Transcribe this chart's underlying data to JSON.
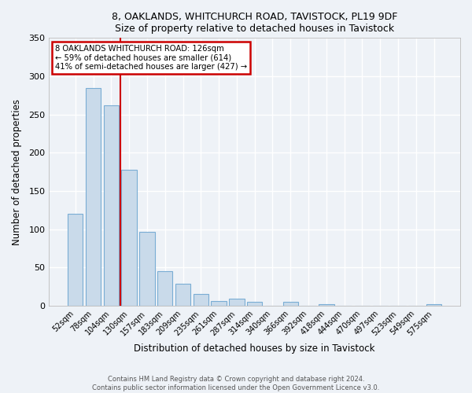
{
  "title1": "8, OAKLANDS, WHITCHURCH ROAD, TAVISTOCK, PL19 9DF",
  "title2": "Size of property relative to detached houses in Tavistock",
  "xlabel": "Distribution of detached houses by size in Tavistock",
  "ylabel": "Number of detached properties",
  "bar_labels": [
    "52sqm",
    "78sqm",
    "104sqm",
    "130sqm",
    "157sqm",
    "183sqm",
    "209sqm",
    "235sqm",
    "261sqm",
    "287sqm",
    "314sqm",
    "340sqm",
    "366sqm",
    "392sqm",
    "418sqm",
    "444sqm",
    "470sqm",
    "497sqm",
    "523sqm",
    "549sqm",
    "575sqm"
  ],
  "bar_values": [
    120,
    285,
    262,
    178,
    96,
    45,
    29,
    15,
    6,
    9,
    5,
    0,
    5,
    0,
    2,
    0,
    0,
    0,
    0,
    0,
    2
  ],
  "bar_color": "#c9daea",
  "bar_edge_color": "#7aadd4",
  "vline_color": "#cc0000",
  "vline_x_idx": 3,
  "annotation_title": "8 OAKLANDS WHITCHURCH ROAD: 126sqm",
  "annotation_line1": "← 59% of detached houses are smaller (614)",
  "annotation_line2": "41% of semi-detached houses are larger (427) →",
  "annotation_box_edge": "#cc0000",
  "ylim": [
    0,
    350
  ],
  "yticks": [
    0,
    50,
    100,
    150,
    200,
    250,
    300,
    350
  ],
  "footer1": "Contains HM Land Registry data © Crown copyright and database right 2024.",
  "footer2": "Contains public sector information licensed under the Open Government Licence v3.0.",
  "bg_color": "#eef2f7"
}
